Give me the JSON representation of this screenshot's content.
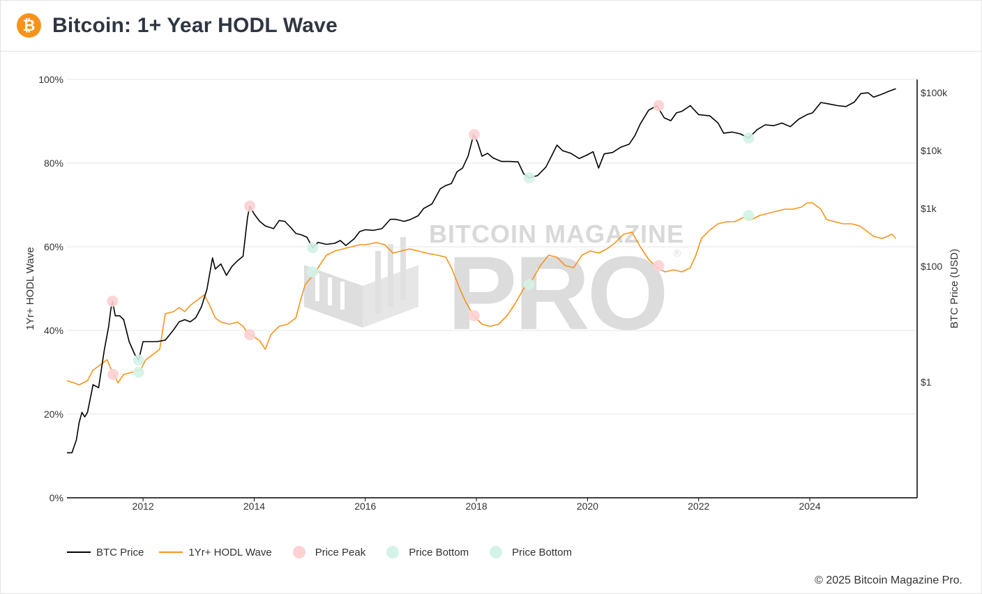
{
  "header": {
    "title": "Bitcoin: 1+ Year HODL Wave",
    "logo_icon": "bitcoin-logo-icon",
    "logo_glyph": "₿",
    "brand_color": "#f7931a"
  },
  "watermark": {
    "line1": "BITCOIN MAGAZINE",
    "line2": "PRO",
    "registered": "®"
  },
  "footer": {
    "copyright": "© 2025 Bitcoin Magazine Pro."
  },
  "legend": [
    {
      "label": "BTC Price",
      "kind": "line",
      "color": "#000000"
    },
    {
      "label": "1Yr+ HODL Wave",
      "kind": "line",
      "color": "#f7931a"
    },
    {
      "label": "Price Peak",
      "kind": "dot",
      "color": "#fcd2d2"
    },
    {
      "label": "Price Bottom",
      "kind": "dot",
      "color": "#d4f3e7"
    },
    {
      "label": "Price Bottom",
      "kind": "dot",
      "color": "#d4f3e7"
    }
  ],
  "chart_data": {
    "type": "line",
    "title": "Bitcoin: 1+ Year HODL Wave",
    "xlabel": "",
    "ylabel": "1Yr+ HODL Wave",
    "y2label": "BTC Price (USD)",
    "x_ticks": [
      "2012",
      "2014",
      "2016",
      "2018",
      "2020",
      "2022",
      "2024"
    ],
    "y_ticks": [
      "0%",
      "20%",
      "40%",
      "60%",
      "80%",
      "100%"
    ],
    "y2_ticks": [
      "$1",
      "$100",
      "$1k",
      "$10k",
      "$100k"
    ],
    "xlim": [
      2010.63,
      2025.92
    ],
    "ylim": [
      0,
      100
    ],
    "y2_scale": "log",
    "y2lim": [
      0.01,
      170000
    ],
    "grid": "horizontal",
    "legend_position": "bottom-left",
    "series": [
      {
        "name": "BTC Price",
        "axis": "right",
        "color": "#000000",
        "points": [
          [
            2010.63,
            0.06
          ],
          [
            2010.72,
            0.06
          ],
          [
            2010.8,
            0.1
          ],
          [
            2010.85,
            0.2
          ],
          [
            2010.9,
            0.3
          ],
          [
            2010.95,
            0.25
          ],
          [
            2011.0,
            0.3
          ],
          [
            2011.1,
            0.9
          ],
          [
            2011.2,
            0.8
          ],
          [
            2011.3,
            3.5
          ],
          [
            2011.38,
            9
          ],
          [
            2011.42,
            18
          ],
          [
            2011.45,
            25
          ],
          [
            2011.5,
            14
          ],
          [
            2011.58,
            14
          ],
          [
            2011.65,
            12
          ],
          [
            2011.75,
            5
          ],
          [
            2011.85,
            3
          ],
          [
            2011.92,
            2.4
          ],
          [
            2012.0,
            5
          ],
          [
            2012.1,
            5
          ],
          [
            2012.25,
            5
          ],
          [
            2012.4,
            5.3
          ],
          [
            2012.55,
            8
          ],
          [
            2012.65,
            11
          ],
          [
            2012.75,
            12
          ],
          [
            2012.85,
            11
          ],
          [
            2012.95,
            13
          ],
          [
            2013.05,
            20
          ],
          [
            2013.15,
            40
          ],
          [
            2013.25,
            140
          ],
          [
            2013.3,
            90
          ],
          [
            2013.4,
            110
          ],
          [
            2013.5,
            70
          ],
          [
            2013.6,
            100
          ],
          [
            2013.7,
            125
          ],
          [
            2013.8,
            150
          ],
          [
            2013.88,
            700
          ],
          [
            2013.92,
            1100
          ],
          [
            2014.0,
            800
          ],
          [
            2014.1,
            600
          ],
          [
            2014.2,
            500
          ],
          [
            2014.35,
            450
          ],
          [
            2014.45,
            620
          ],
          [
            2014.55,
            600
          ],
          [
            2014.65,
            480
          ],
          [
            2014.75,
            370
          ],
          [
            2014.85,
            350
          ],
          [
            2014.95,
            320
          ],
          [
            2015.05,
            210
          ],
          [
            2015.15,
            260
          ],
          [
            2015.3,
            240
          ],
          [
            2015.45,
            250
          ],
          [
            2015.55,
            280
          ],
          [
            2015.65,
            230
          ],
          [
            2015.8,
            300
          ],
          [
            2015.9,
            400
          ],
          [
            2016.0,
            430
          ],
          [
            2016.15,
            420
          ],
          [
            2016.3,
            450
          ],
          [
            2016.45,
            650
          ],
          [
            2016.55,
            650
          ],
          [
            2016.7,
            600
          ],
          [
            2016.8,
            640
          ],
          [
            2016.95,
            750
          ],
          [
            2017.05,
            1000
          ],
          [
            2017.2,
            1200
          ],
          [
            2017.35,
            2200
          ],
          [
            2017.45,
            2500
          ],
          [
            2017.55,
            2700
          ],
          [
            2017.65,
            4300
          ],
          [
            2017.75,
            5000
          ],
          [
            2017.85,
            8000
          ],
          [
            2017.95,
            19000
          ],
          [
            2018.02,
            14000
          ],
          [
            2018.1,
            8000
          ],
          [
            2018.2,
            9000
          ],
          [
            2018.3,
            7500
          ],
          [
            2018.45,
            6500
          ],
          [
            2018.6,
            6500
          ],
          [
            2018.75,
            6400
          ],
          [
            2018.85,
            4000
          ],
          [
            2018.95,
            3400
          ],
          [
            2019.1,
            3700
          ],
          [
            2019.25,
            5200
          ],
          [
            2019.35,
            8000
          ],
          [
            2019.45,
            12500
          ],
          [
            2019.55,
            10000
          ],
          [
            2019.7,
            9000
          ],
          [
            2019.85,
            7300
          ],
          [
            2020.0,
            8500
          ],
          [
            2020.1,
            9600
          ],
          [
            2020.2,
            5000
          ],
          [
            2020.3,
            8800
          ],
          [
            2020.45,
            9300
          ],
          [
            2020.6,
            11500
          ],
          [
            2020.75,
            13000
          ],
          [
            2020.85,
            18000
          ],
          [
            2020.95,
            29000
          ],
          [
            2021.1,
            50000
          ],
          [
            2021.25,
            60000
          ],
          [
            2021.38,
            37000
          ],
          [
            2021.5,
            33000
          ],
          [
            2021.6,
            45000
          ],
          [
            2021.7,
            48000
          ],
          [
            2021.85,
            60000
          ],
          [
            2022.0,
            42000
          ],
          [
            2022.2,
            40000
          ],
          [
            2022.35,
            30000
          ],
          [
            2022.45,
            20000
          ],
          [
            2022.6,
            21000
          ],
          [
            2022.75,
            19500
          ],
          [
            2022.9,
            16500
          ],
          [
            2023.05,
            23000
          ],
          [
            2023.2,
            28000
          ],
          [
            2023.35,
            27000
          ],
          [
            2023.5,
            30000
          ],
          [
            2023.65,
            26000
          ],
          [
            2023.8,
            35000
          ],
          [
            2023.95,
            42000
          ],
          [
            2024.05,
            45000
          ],
          [
            2024.2,
            68000
          ],
          [
            2024.35,
            64000
          ],
          [
            2024.5,
            60000
          ],
          [
            2024.65,
            58000
          ],
          [
            2024.8,
            69000
          ],
          [
            2024.92,
            97000
          ],
          [
            2025.05,
            100000
          ],
          [
            2025.15,
            84000
          ],
          [
            2025.3,
            95000
          ],
          [
            2025.42,
            106000
          ],
          [
            2025.55,
            118000
          ]
        ]
      },
      {
        "name": "1Yr+ HODL Wave",
        "axis": "left",
        "color": "#f7931a",
        "points": [
          [
            2010.63,
            28
          ],
          [
            2010.75,
            27.5
          ],
          [
            2010.85,
            27
          ],
          [
            2011.0,
            28
          ],
          [
            2011.1,
            30.5
          ],
          [
            2011.2,
            31.5
          ],
          [
            2011.35,
            33
          ],
          [
            2011.45,
            30
          ],
          [
            2011.55,
            27.5
          ],
          [
            2011.65,
            29.5
          ],
          [
            2011.8,
            30
          ],
          [
            2011.95,
            30.5
          ],
          [
            2012.05,
            33
          ],
          [
            2012.15,
            34
          ],
          [
            2012.3,
            35.5
          ],
          [
            2012.4,
            44
          ],
          [
            2012.55,
            44.5
          ],
          [
            2012.65,
            45.5
          ],
          [
            2012.75,
            44.5
          ],
          [
            2012.85,
            46
          ],
          [
            2013.0,
            47.5
          ],
          [
            2013.1,
            48.5
          ],
          [
            2013.2,
            46
          ],
          [
            2013.3,
            43
          ],
          [
            2013.4,
            42
          ],
          [
            2013.55,
            41.5
          ],
          [
            2013.7,
            42
          ],
          [
            2013.8,
            41
          ],
          [
            2013.9,
            39
          ],
          [
            2014.0,
            38.5
          ],
          [
            2014.1,
            37.5
          ],
          [
            2014.2,
            35.5
          ],
          [
            2014.3,
            39
          ],
          [
            2014.45,
            41
          ],
          [
            2014.6,
            41.5
          ],
          [
            2014.75,
            43
          ],
          [
            2014.85,
            48
          ],
          [
            2014.92,
            51
          ],
          [
            2015.05,
            53
          ],
          [
            2015.15,
            55
          ],
          [
            2015.3,
            58
          ],
          [
            2015.45,
            59
          ],
          [
            2015.6,
            59.5
          ],
          [
            2015.75,
            60
          ],
          [
            2015.9,
            60.5
          ],
          [
            2016.0,
            60.5
          ],
          [
            2016.2,
            61
          ],
          [
            2016.35,
            60.5
          ],
          [
            2016.5,
            58.5
          ],
          [
            2016.65,
            59
          ],
          [
            2016.8,
            59.5
          ],
          [
            2016.95,
            59
          ],
          [
            2017.1,
            58.5
          ],
          [
            2017.3,
            58
          ],
          [
            2017.45,
            57.5
          ],
          [
            2017.55,
            55
          ],
          [
            2017.7,
            50
          ],
          [
            2017.8,
            47
          ],
          [
            2017.95,
            43.5
          ],
          [
            2018.1,
            41.5
          ],
          [
            2018.25,
            41
          ],
          [
            2018.4,
            41.5
          ],
          [
            2018.55,
            43.5
          ],
          [
            2018.7,
            46.5
          ],
          [
            2018.85,
            50
          ],
          [
            2019.0,
            52
          ],
          [
            2019.15,
            55.5
          ],
          [
            2019.3,
            58
          ],
          [
            2019.45,
            57.5
          ],
          [
            2019.6,
            55.5
          ],
          [
            2019.75,
            55
          ],
          [
            2019.9,
            58
          ],
          [
            2020.05,
            59
          ],
          [
            2020.2,
            58.5
          ],
          [
            2020.35,
            59.5
          ],
          [
            2020.5,
            61
          ],
          [
            2020.65,
            63
          ],
          [
            2020.8,
            63.5
          ],
          [
            2020.95,
            60
          ],
          [
            2021.1,
            57
          ],
          [
            2021.25,
            55
          ],
          [
            2021.4,
            54
          ],
          [
            2021.55,
            54.5
          ],
          [
            2021.7,
            54
          ],
          [
            2021.85,
            55
          ],
          [
            2021.95,
            58
          ],
          [
            2022.05,
            62
          ],
          [
            2022.2,
            64
          ],
          [
            2022.35,
            65.5
          ],
          [
            2022.5,
            66
          ],
          [
            2022.65,
            66
          ],
          [
            2022.8,
            67
          ],
          [
            2022.95,
            66.5
          ],
          [
            2023.1,
            67.5
          ],
          [
            2023.25,
            68
          ],
          [
            2023.4,
            68.5
          ],
          [
            2023.55,
            69
          ],
          [
            2023.7,
            69
          ],
          [
            2023.85,
            69.5
          ],
          [
            2023.95,
            70.5
          ],
          [
            2024.05,
            70.5
          ],
          [
            2024.2,
            69
          ],
          [
            2024.3,
            66.5
          ],
          [
            2024.45,
            66
          ],
          [
            2024.6,
            65.5
          ],
          [
            2024.75,
            65.5
          ],
          [
            2024.9,
            65
          ],
          [
            2025.05,
            63.5
          ],
          [
            2025.15,
            62.5
          ],
          [
            2025.3,
            62
          ],
          [
            2025.4,
            62.5
          ],
          [
            2025.48,
            63
          ],
          [
            2025.55,
            62
          ]
        ]
      }
    ],
    "markers": [
      {
        "kind": "Price Peak",
        "axis": "right",
        "x": 2011.45,
        "y": 25
      },
      {
        "kind": "Price Peak",
        "axis": "left",
        "x": 2011.46,
        "y": 29.5
      },
      {
        "kind": "Price Peak",
        "axis": "right",
        "x": 2013.92,
        "y": 1100
      },
      {
        "kind": "Price Peak",
        "axis": "left",
        "x": 2013.92,
        "y": 39
      },
      {
        "kind": "Price Peak",
        "axis": "right",
        "x": 2017.96,
        "y": 19000
      },
      {
        "kind": "Price Peak",
        "axis": "left",
        "x": 2017.96,
        "y": 43.5
      },
      {
        "kind": "Price Peak",
        "axis": "right",
        "x": 2021.28,
        "y": 60000
      },
      {
        "kind": "Price Peak",
        "axis": "left",
        "x": 2021.28,
        "y": 55.5
      },
      {
        "kind": "Price Bottom",
        "axis": "right",
        "x": 2011.92,
        "y": 2.4
      },
      {
        "kind": "Price Bottom",
        "axis": "left",
        "x": 2011.92,
        "y": 30
      },
      {
        "kind": "Price Bottom",
        "axis": "right",
        "x": 2015.05,
        "y": 210
      },
      {
        "kind": "Price Bottom",
        "axis": "left",
        "x": 2015.05,
        "y": 54
      },
      {
        "kind": "Price Bottom",
        "axis": "right",
        "x": 2018.95,
        "y": 3400
      },
      {
        "kind": "Price Bottom",
        "axis": "left",
        "x": 2018.95,
        "y": 51
      },
      {
        "kind": "Price Bottom",
        "axis": "right",
        "x": 2022.9,
        "y": 16500
      },
      {
        "kind": "Price Bottom",
        "axis": "left",
        "x": 2022.9,
        "y": 67.5
      }
    ],
    "marker_colors": {
      "Price Peak": "#fcd2d2",
      "Price Bottom": "#d4f3e7"
    }
  }
}
